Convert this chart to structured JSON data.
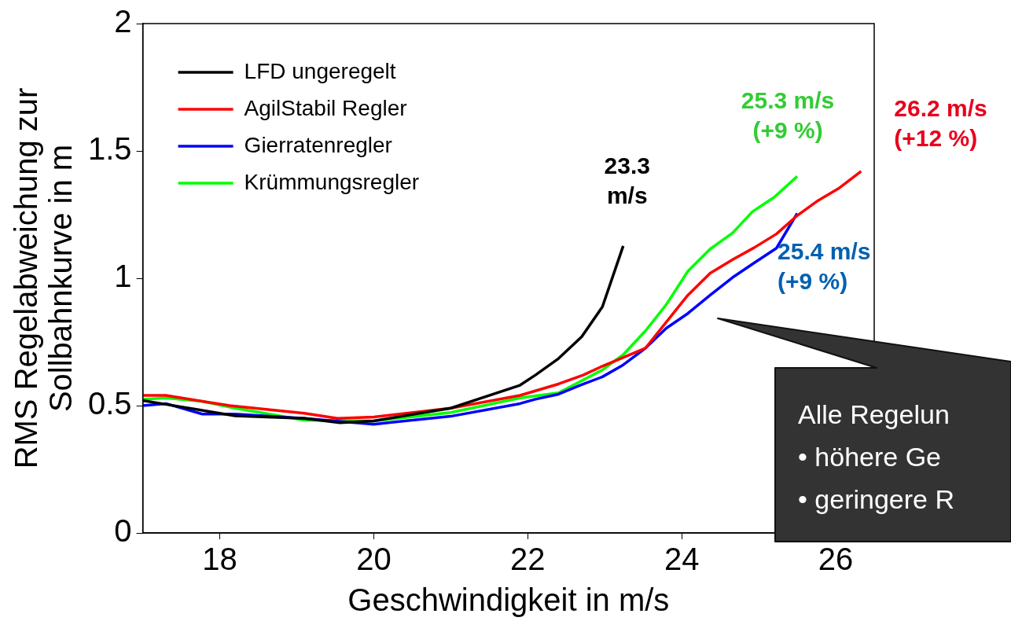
{
  "chart_data": {
    "type": "line",
    "xlabel": "Geschwindigkeit in m/s",
    "ylabel": "RMS Regelabweichung zur\nSollbahnkurve in m",
    "xlim": [
      17,
      26.5
    ],
    "ylim": [
      0,
      2
    ],
    "xticks": [
      18,
      20,
      22,
      24,
      26
    ],
    "yticks": [
      0,
      0.5,
      1,
      1.5,
      2
    ],
    "grid": false,
    "legend": "top left",
    "marker": "none",
    "line_style": "solid",
    "series": [
      {
        "name": "LFD ungeregelt",
        "color": "#000000",
        "x": [
          17,
          17.3,
          18.2,
          19.1,
          19.56,
          20,
          21,
          21.9,
          22.1,
          22.4,
          22.7,
          22.97,
          23.24
        ],
        "values": [
          0.52,
          0.505,
          0.46,
          0.45,
          0.433,
          0.44,
          0.49,
          0.58,
          0.62,
          0.685,
          0.77,
          0.888,
          1.127
        ]
      },
      {
        "name": "AgilStabil Regler",
        "color": "#ff0000",
        "x": [
          17,
          17.3,
          18.13,
          19.1,
          19.53,
          20,
          21,
          21.9,
          22.4,
          22.72,
          22.97,
          23.53,
          24.08,
          24.37,
          24.67,
          24.94,
          25.23,
          25.5,
          25.77,
          26.05,
          26.33
        ],
        "values": [
          0.54,
          0.54,
          0.5,
          0.47,
          0.45,
          0.455,
          0.49,
          0.54,
          0.585,
          0.62,
          0.655,
          0.726,
          0.934,
          1.02,
          1.075,
          1.12,
          1.174,
          1.246,
          1.305,
          1.355,
          1.42
        ]
      },
      {
        "name": "Gierratenregler",
        "color": "#0000ff",
        "x": [
          17,
          17.3,
          17.77,
          18.2,
          19.1,
          20,
          21,
          21.9,
          22.1,
          22.4,
          22.68,
          22.97,
          23.24,
          23.53,
          23.8,
          24.08,
          24.37,
          24.66,
          24.94,
          25.23,
          25.5
        ],
        "values": [
          0.5,
          0.508,
          0.467,
          0.467,
          0.45,
          0.427,
          0.458,
          0.508,
          0.525,
          0.545,
          0.58,
          0.613,
          0.66,
          0.726,
          0.804,
          0.862,
          0.934,
          1.003,
          1.06,
          1.118,
          1.255
        ]
      },
      {
        "name": "Krümmungsregler",
        "color": "#00ff00",
        "x": [
          17,
          17.3,
          17.77,
          18.2,
          19.1,
          20,
          21,
          21.9,
          22.4,
          22.97,
          23.24,
          23.53,
          23.8,
          24.08,
          24.37,
          24.66,
          24.92,
          25.2,
          25.5
        ],
        "values": [
          0.525,
          0.53,
          0.517,
          0.49,
          0.443,
          0.44,
          0.473,
          0.53,
          0.55,
          0.64,
          0.7,
          0.794,
          0.897,
          1.028,
          1.115,
          1.178,
          1.262,
          1.318,
          1.4
        ]
      }
    ],
    "annotations": [
      {
        "text": "23.3\nm/s",
        "x": 23.24,
        "y": 1.127
      },
      {
        "text": "26.2 m/s\n(+12 %)",
        "x": 26.33,
        "y": 1.42
      },
      {
        "text": "25.4 m/s\n(+9 %)",
        "x": 25.5,
        "y": 1.255
      },
      {
        "text": "25.3 m/s\n(+9 %)",
        "x": 25.5,
        "y": 1.4
      },
      "Alle Regelun",
      "• höhere Ge",
      "• geringere R"
    ]
  }
}
